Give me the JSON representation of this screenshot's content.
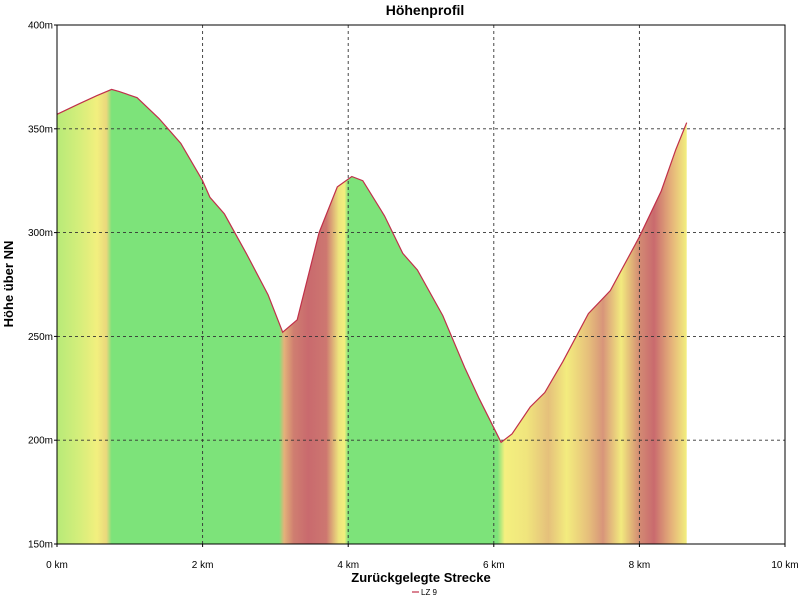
{
  "chart_data": {
    "type": "area",
    "title": "Höhenprofil",
    "xlabel": "Zurückgelegte Strecke",
    "ylabel": "Höhe über NN",
    "xlim": [
      0,
      10
    ],
    "ylim": [
      150,
      400
    ],
    "x_ticks": [
      {
        "value": 0,
        "label": "0 km"
      },
      {
        "value": 2,
        "label": "2 km"
      },
      {
        "value": 4,
        "label": "4 km"
      },
      {
        "value": 6,
        "label": "6 km"
      },
      {
        "value": 8,
        "label": "8 km"
      },
      {
        "value": 10,
        "label": "10 km"
      }
    ],
    "y_ticks": [
      {
        "value": 150,
        "label": "150m"
      },
      {
        "value": 200,
        "label": "200m"
      },
      {
        "value": 250,
        "label": "250m"
      },
      {
        "value": 300,
        "label": "300m"
      },
      {
        "value": 350,
        "label": "350m"
      },
      {
        "value": 400,
        "label": "400m"
      }
    ],
    "grid": true,
    "legend_position": "bottom-center",
    "series": [
      {
        "name": "LZ 9",
        "color": "#c0304a",
        "x": [
          0,
          0.3,
          0.55,
          0.75,
          0.85,
          1.1,
          1.4,
          1.7,
          2.0,
          2.1,
          2.3,
          2.6,
          2.9,
          3.1,
          3.3,
          3.6,
          3.85,
          4.05,
          4.2,
          4.5,
          4.75,
          4.95,
          5.3,
          5.6,
          5.8,
          6.1,
          6.25,
          6.5,
          6.7,
          6.95,
          7.3,
          7.6,
          8.0,
          8.3,
          8.5,
          8.65
        ],
        "y": [
          357,
          362,
          366,
          369,
          368,
          365,
          355,
          343,
          325,
          317,
          309,
          290,
          270,
          252,
          258,
          300,
          322,
          327,
          325,
          308,
          290,
          282,
          260,
          235,
          220,
          199,
          203,
          216,
          223,
          238,
          261,
          272,
          298,
          320,
          340,
          353
        ]
      }
    ],
    "gradient_colors": {
      "green": "#7de37a",
      "yellow": "#f2ef7e",
      "red": "#c96a6e",
      "orange": "#e2b27a"
    },
    "gradient_stops": [
      {
        "x": 0.0,
        "color": "#b7ea78"
      },
      {
        "x": 0.3,
        "color": "#d4ee7b"
      },
      {
        "x": 0.55,
        "color": "#f2ef7e"
      },
      {
        "x": 0.68,
        "color": "#e9d77c"
      },
      {
        "x": 0.75,
        "color": "#7de37a"
      },
      {
        "x": 3.05,
        "color": "#7de37a"
      },
      {
        "x": 3.12,
        "color": "#e4b27a"
      },
      {
        "x": 3.25,
        "color": "#cf7e70"
      },
      {
        "x": 3.45,
        "color": "#c96a6e"
      },
      {
        "x": 3.7,
        "color": "#cd7770"
      },
      {
        "x": 3.87,
        "color": "#ede47d"
      },
      {
        "x": 3.95,
        "color": "#f2ef7e"
      },
      {
        "x": 4.0,
        "color": "#7de37a"
      },
      {
        "x": 6.05,
        "color": "#7de37a"
      },
      {
        "x": 6.15,
        "color": "#f4f07f"
      },
      {
        "x": 6.45,
        "color": "#f0e57d"
      },
      {
        "x": 6.75,
        "color": "#e5c07b"
      },
      {
        "x": 7.0,
        "color": "#f3ec7e"
      },
      {
        "x": 7.3,
        "color": "#e6bf7b"
      },
      {
        "x": 7.5,
        "color": "#d8957a"
      },
      {
        "x": 7.75,
        "color": "#f2ea7e"
      },
      {
        "x": 8.0,
        "color": "#d38b73"
      },
      {
        "x": 8.2,
        "color": "#c96a6e"
      },
      {
        "x": 8.45,
        "color": "#e6b57a"
      },
      {
        "x": 8.65,
        "color": "#f2ef7e"
      }
    ]
  }
}
